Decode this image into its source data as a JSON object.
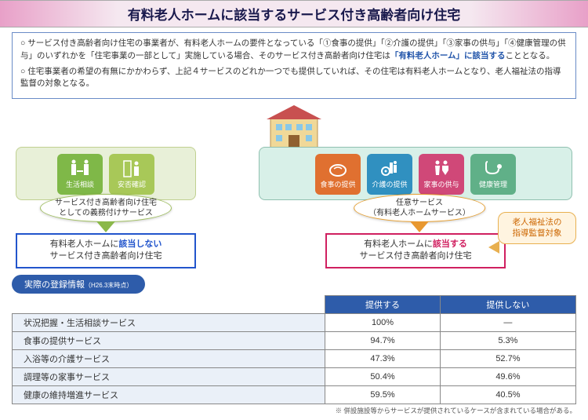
{
  "title": "有料老人ホームに該当するサービス付き高齢者向け住宅",
  "info": {
    "p1a": "○ サービス付き高齢者向け住宅の事業者が、有料老人ホームの要件となっている「①食事の提供」「②介護の提供」「③家事の供与」「④健康管理の供与」のいずれかを「住宅事業の一部として」実施している場合、そのサービス付き高齢者向け住宅は",
    "p1b": "「有料老人ホーム」に該当する",
    "p1c": "こととなる。",
    "p2": "○ 住宅事業者の希望の有無にかかわらず、上記４サービスのどれか一つでも提供していれば、その住宅は有料老人ホームとなり、老人福祉法の指導監督の対象となる。"
  },
  "leftGroup": {
    "caption": "サービス付き高齢者向け住宅\nとしての義務付けサービス",
    "icons": [
      {
        "label": "生活相談",
        "color": "#7fb848"
      },
      {
        "label": "安否確認",
        "color": "#a8c858"
      }
    ],
    "result": {
      "pre": "有料老人ホームに",
      "key": "該当しない",
      "post": "\nサービス付き高齢者向け住宅"
    }
  },
  "rightGroup": {
    "caption": "任意サービス\n（有料老人ホームサービス）",
    "icons": [
      {
        "label": "食事の提供",
        "color": "#e07030"
      },
      {
        "label": "介護の提供",
        "color": "#3090c0"
      },
      {
        "label": "家事の供与",
        "color": "#d04878"
      },
      {
        "label": "健康管理",
        "color": "#60b088"
      }
    ],
    "result": {
      "pre": "有料老人ホームに",
      "key": "該当する",
      "post": "\nサービス付き高齢者向け住宅"
    }
  },
  "noteBubble": "老人福祉法の\n指導監督対象",
  "table": {
    "title": "実際の登録情報",
    "titleSub": "（H26.3末時点）",
    "headers": [
      "",
      "提供する",
      "提供しない"
    ],
    "rows": [
      [
        "状況把握・生活相談サービス",
        "100%",
        "―"
      ],
      [
        "食事の提供サービス",
        "94.7%",
        "5.3%"
      ],
      [
        "入浴等の介護サービス",
        "47.3%",
        "52.7%"
      ],
      [
        "調理等の家事サービス",
        "50.4%",
        "49.6%"
      ],
      [
        "健康の維持増進サービス",
        "59.5%",
        "40.5%"
      ]
    ]
  },
  "footnote": "※ 併設施設等からサービスが提供されているケースが含まれている場合がある。"
}
